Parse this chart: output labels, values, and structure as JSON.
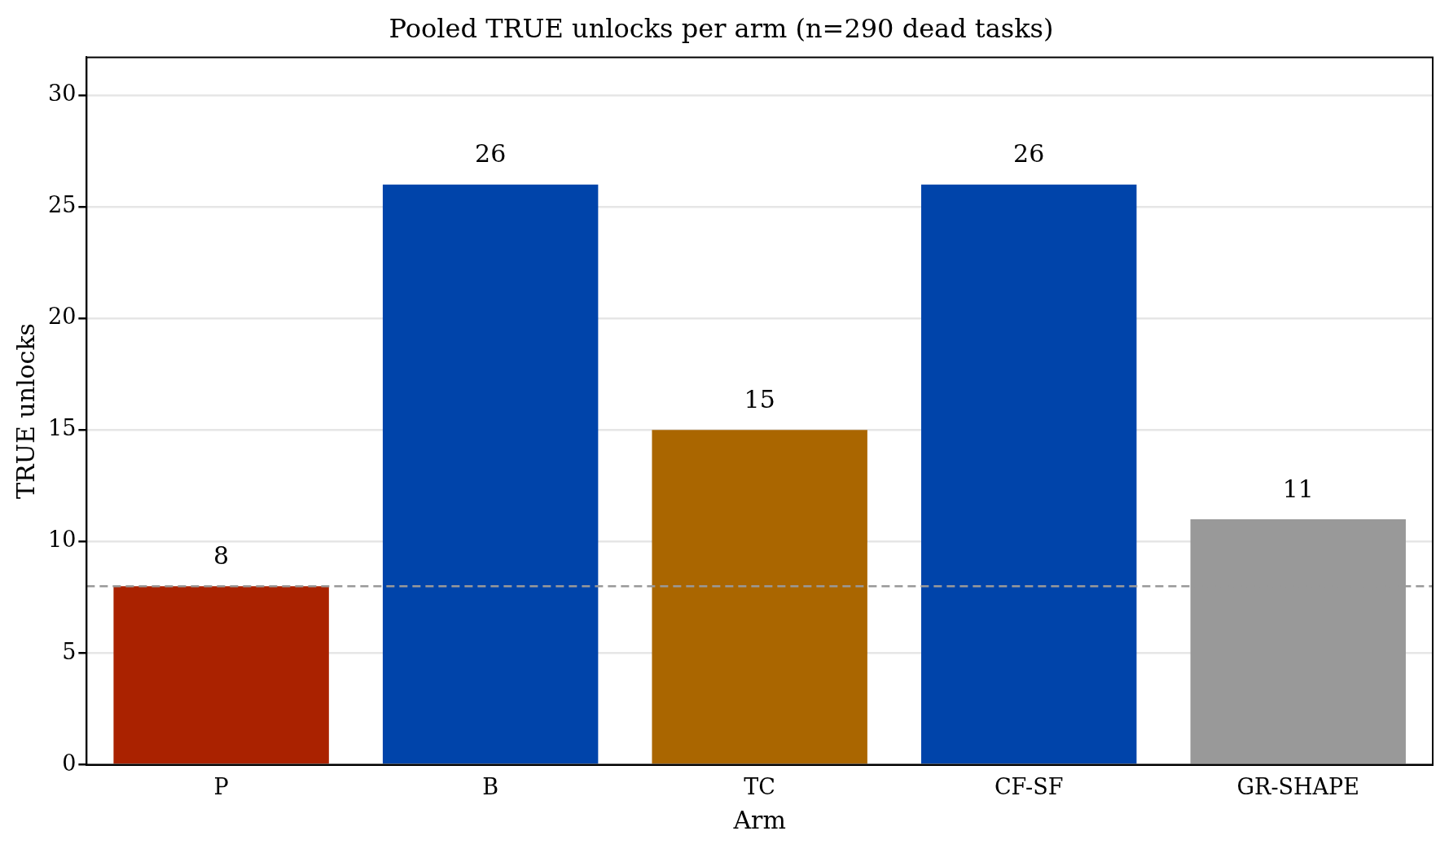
{
  "chart_data": {
    "type": "bar",
    "title": "Pooled TRUE unlocks per arm (n=290 dead tasks)",
    "xlabel": "Arm",
    "ylabel": "TRUE unlocks",
    "categories": [
      "P",
      "B",
      "TC",
      "CF-SF",
      "GR-SHAPE"
    ],
    "values": [
      8,
      26,
      15,
      26,
      11
    ],
    "colors": [
      "#aa2200",
      "#0044aa",
      "#aa6600",
      "#0044aa",
      "#999999"
    ],
    "ylim": [
      0,
      31.7
    ],
    "yticks": [
      0,
      5,
      10,
      15,
      20,
      25,
      30
    ],
    "grid": "y",
    "data_labels": true,
    "ref_lines": [
      {
        "axis": "y",
        "value": 8,
        "color": "#999999",
        "line_style": "dashed"
      }
    ]
  }
}
